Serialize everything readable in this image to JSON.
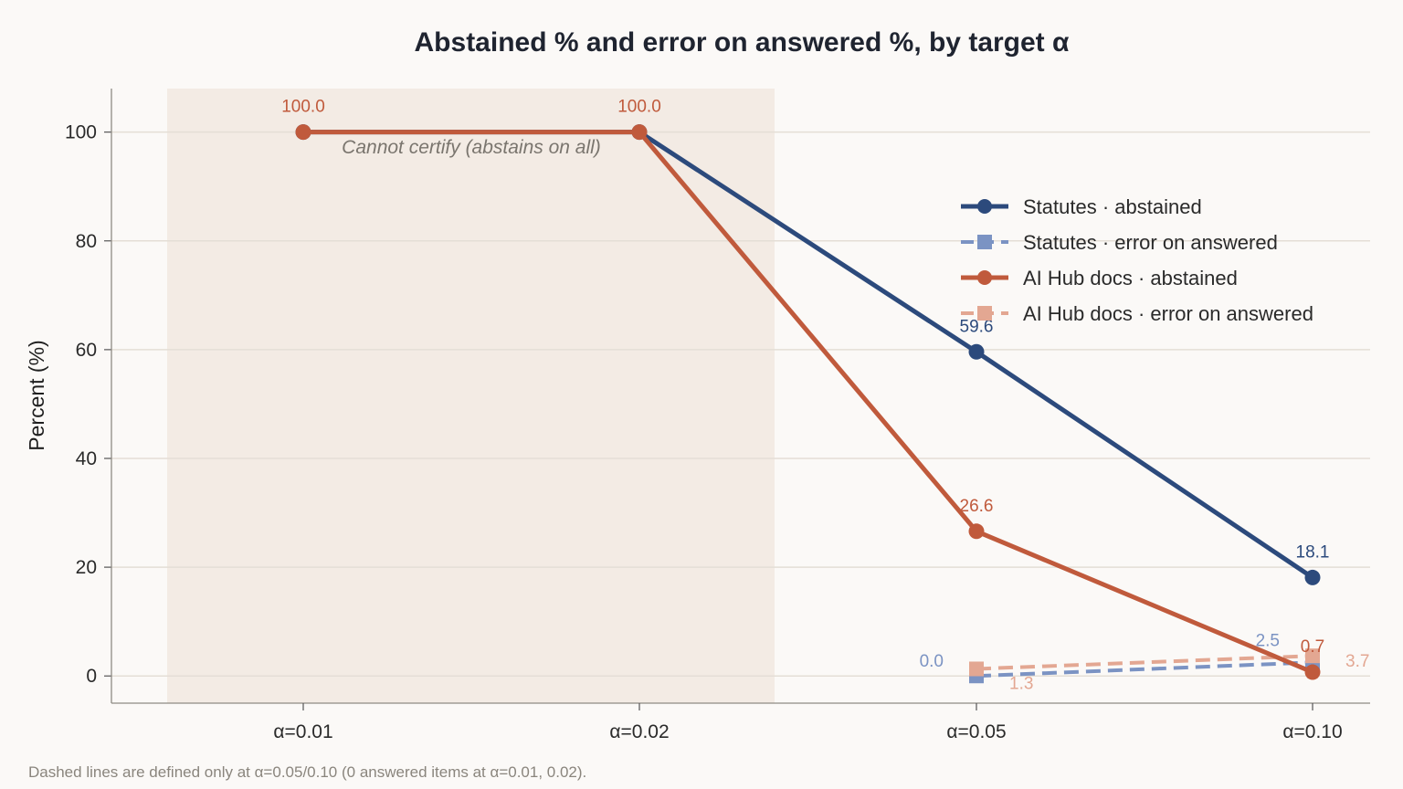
{
  "chart_data": {
    "type": "line",
    "title": "Abstained % and error on answered %, by target α",
    "ylabel": "Percent (%)",
    "xlabel": "",
    "categories": [
      "α=0.01",
      "α=0.02",
      "α=0.05",
      "α=0.10"
    ],
    "ylim": [
      -5,
      108
    ],
    "yticks": [
      0,
      20,
      40,
      60,
      80,
      100
    ],
    "grid": "horizontal",
    "legend_position": "upper-right",
    "shaded_region": {
      "from_category": 0,
      "to_category": 1
    },
    "annotation": "Cannot certify (abstains on all)",
    "series": [
      {
        "name": "Statutes · abstained",
        "values": [
          100.0,
          100.0,
          59.6,
          18.1
        ],
        "labels": [
          null,
          null,
          "59.6",
          "18.1"
        ],
        "color": "#2c4a7c",
        "style": "solid",
        "marker": "circle"
      },
      {
        "name": "Statutes · error on answered",
        "values": [
          null,
          null,
          0.0,
          2.5
        ],
        "labels": [
          null,
          null,
          "0.0",
          "2.5"
        ],
        "color": "#7b93c3",
        "style": "dashed",
        "marker": "square"
      },
      {
        "name": "AI Hub docs · abstained",
        "values": [
          100.0,
          100.0,
          26.6,
          0.7
        ],
        "labels": [
          "100.0",
          "100.0",
          "26.6",
          "0.7"
        ],
        "color": "#c05a3c",
        "style": "solid",
        "marker": "circle"
      },
      {
        "name": "AI Hub docs · error on answered",
        "values": [
          null,
          null,
          1.3,
          3.7
        ],
        "labels": [
          null,
          null,
          "1.3",
          "3.7"
        ],
        "color": "#e3a792",
        "style": "dashed",
        "marker": "square"
      }
    ],
    "footnote": "Dashed lines are defined only at α=0.05/0.10 (0 answered items at α=0.01, 0.02)."
  }
}
